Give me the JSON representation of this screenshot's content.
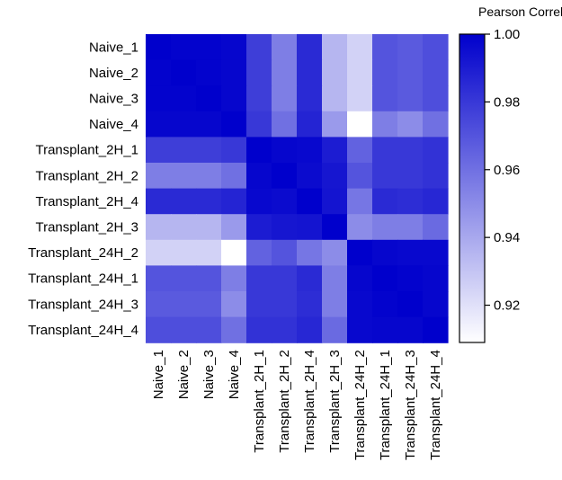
{
  "chart_data": {
    "type": "heatmap",
    "title": "",
    "xlabel": "",
    "ylabel": "",
    "rows": [
      "Naive_1",
      "Naive_2",
      "Naive_3",
      "Naive_4",
      "Transplant_2H_1",
      "Transplant_2H_2",
      "Transplant_2H_4",
      "Transplant_2H_3",
      "Transplant_24H_2",
      "Transplant_24H_1",
      "Transplant_24H_3",
      "Transplant_24H_4"
    ],
    "columns": [
      "Naive_1",
      "Naive_2",
      "Naive_3",
      "Naive_4",
      "Transplant_2H_1",
      "Transplant_2H_2",
      "Transplant_2H_4",
      "Transplant_2H_3",
      "Transplant_24H_2",
      "Transplant_24H_1",
      "Transplant_24H_3",
      "Transplant_24H_4"
    ],
    "values": [
      [
        1.0,
        0.999,
        0.999,
        0.998,
        0.978,
        0.955,
        0.985,
        0.935,
        0.925,
        0.97,
        0.968,
        0.972
      ],
      [
        0.999,
        1.0,
        0.999,
        0.998,
        0.978,
        0.955,
        0.985,
        0.935,
        0.925,
        0.97,
        0.968,
        0.972
      ],
      [
        0.999,
        0.999,
        1.0,
        0.998,
        0.978,
        0.955,
        0.985,
        0.935,
        0.925,
        0.97,
        0.968,
        0.972
      ],
      [
        0.998,
        0.998,
        0.998,
        1.0,
        0.98,
        0.96,
        0.987,
        0.945,
        0.909,
        0.955,
        0.95,
        0.96
      ],
      [
        0.978,
        0.978,
        0.978,
        0.98,
        1.0,
        0.998,
        0.997,
        0.99,
        0.965,
        0.98,
        0.98,
        0.982
      ],
      [
        0.955,
        0.955,
        0.955,
        0.96,
        0.998,
        1.0,
        0.996,
        0.992,
        0.97,
        0.98,
        0.98,
        0.982
      ],
      [
        0.985,
        0.985,
        0.985,
        0.987,
        0.997,
        0.996,
        1.0,
        0.993,
        0.958,
        0.985,
        0.984,
        0.986
      ],
      [
        0.935,
        0.935,
        0.935,
        0.945,
        0.99,
        0.992,
        0.993,
        1.0,
        0.95,
        0.955,
        0.955,
        0.962
      ],
      [
        0.925,
        0.925,
        0.925,
        0.909,
        0.965,
        0.97,
        0.958,
        0.95,
        1.0,
        0.998,
        0.997,
        0.997
      ],
      [
        0.97,
        0.97,
        0.97,
        0.955,
        0.98,
        0.98,
        0.985,
        0.955,
        0.998,
        1.0,
        0.999,
        0.998
      ],
      [
        0.968,
        0.968,
        0.968,
        0.95,
        0.98,
        0.98,
        0.984,
        0.955,
        0.997,
        0.999,
        1.0,
        0.998
      ],
      [
        0.972,
        0.972,
        0.972,
        0.96,
        0.982,
        0.982,
        0.986,
        0.962,
        0.997,
        0.998,
        0.998,
        1.0
      ]
    ],
    "colorbar": {
      "title": "Pearson Correlation",
      "range": [
        0.909,
        1.0
      ],
      "ticks": [
        0.92,
        0.94,
        0.96,
        0.98,
        1.0
      ],
      "tick_labels": [
        "0.92",
        "0.94",
        "0.96",
        "0.98",
        "1.00"
      ],
      "color_low": "#ffffff",
      "color_high": "#0000cc",
      "placement": "right"
    }
  }
}
